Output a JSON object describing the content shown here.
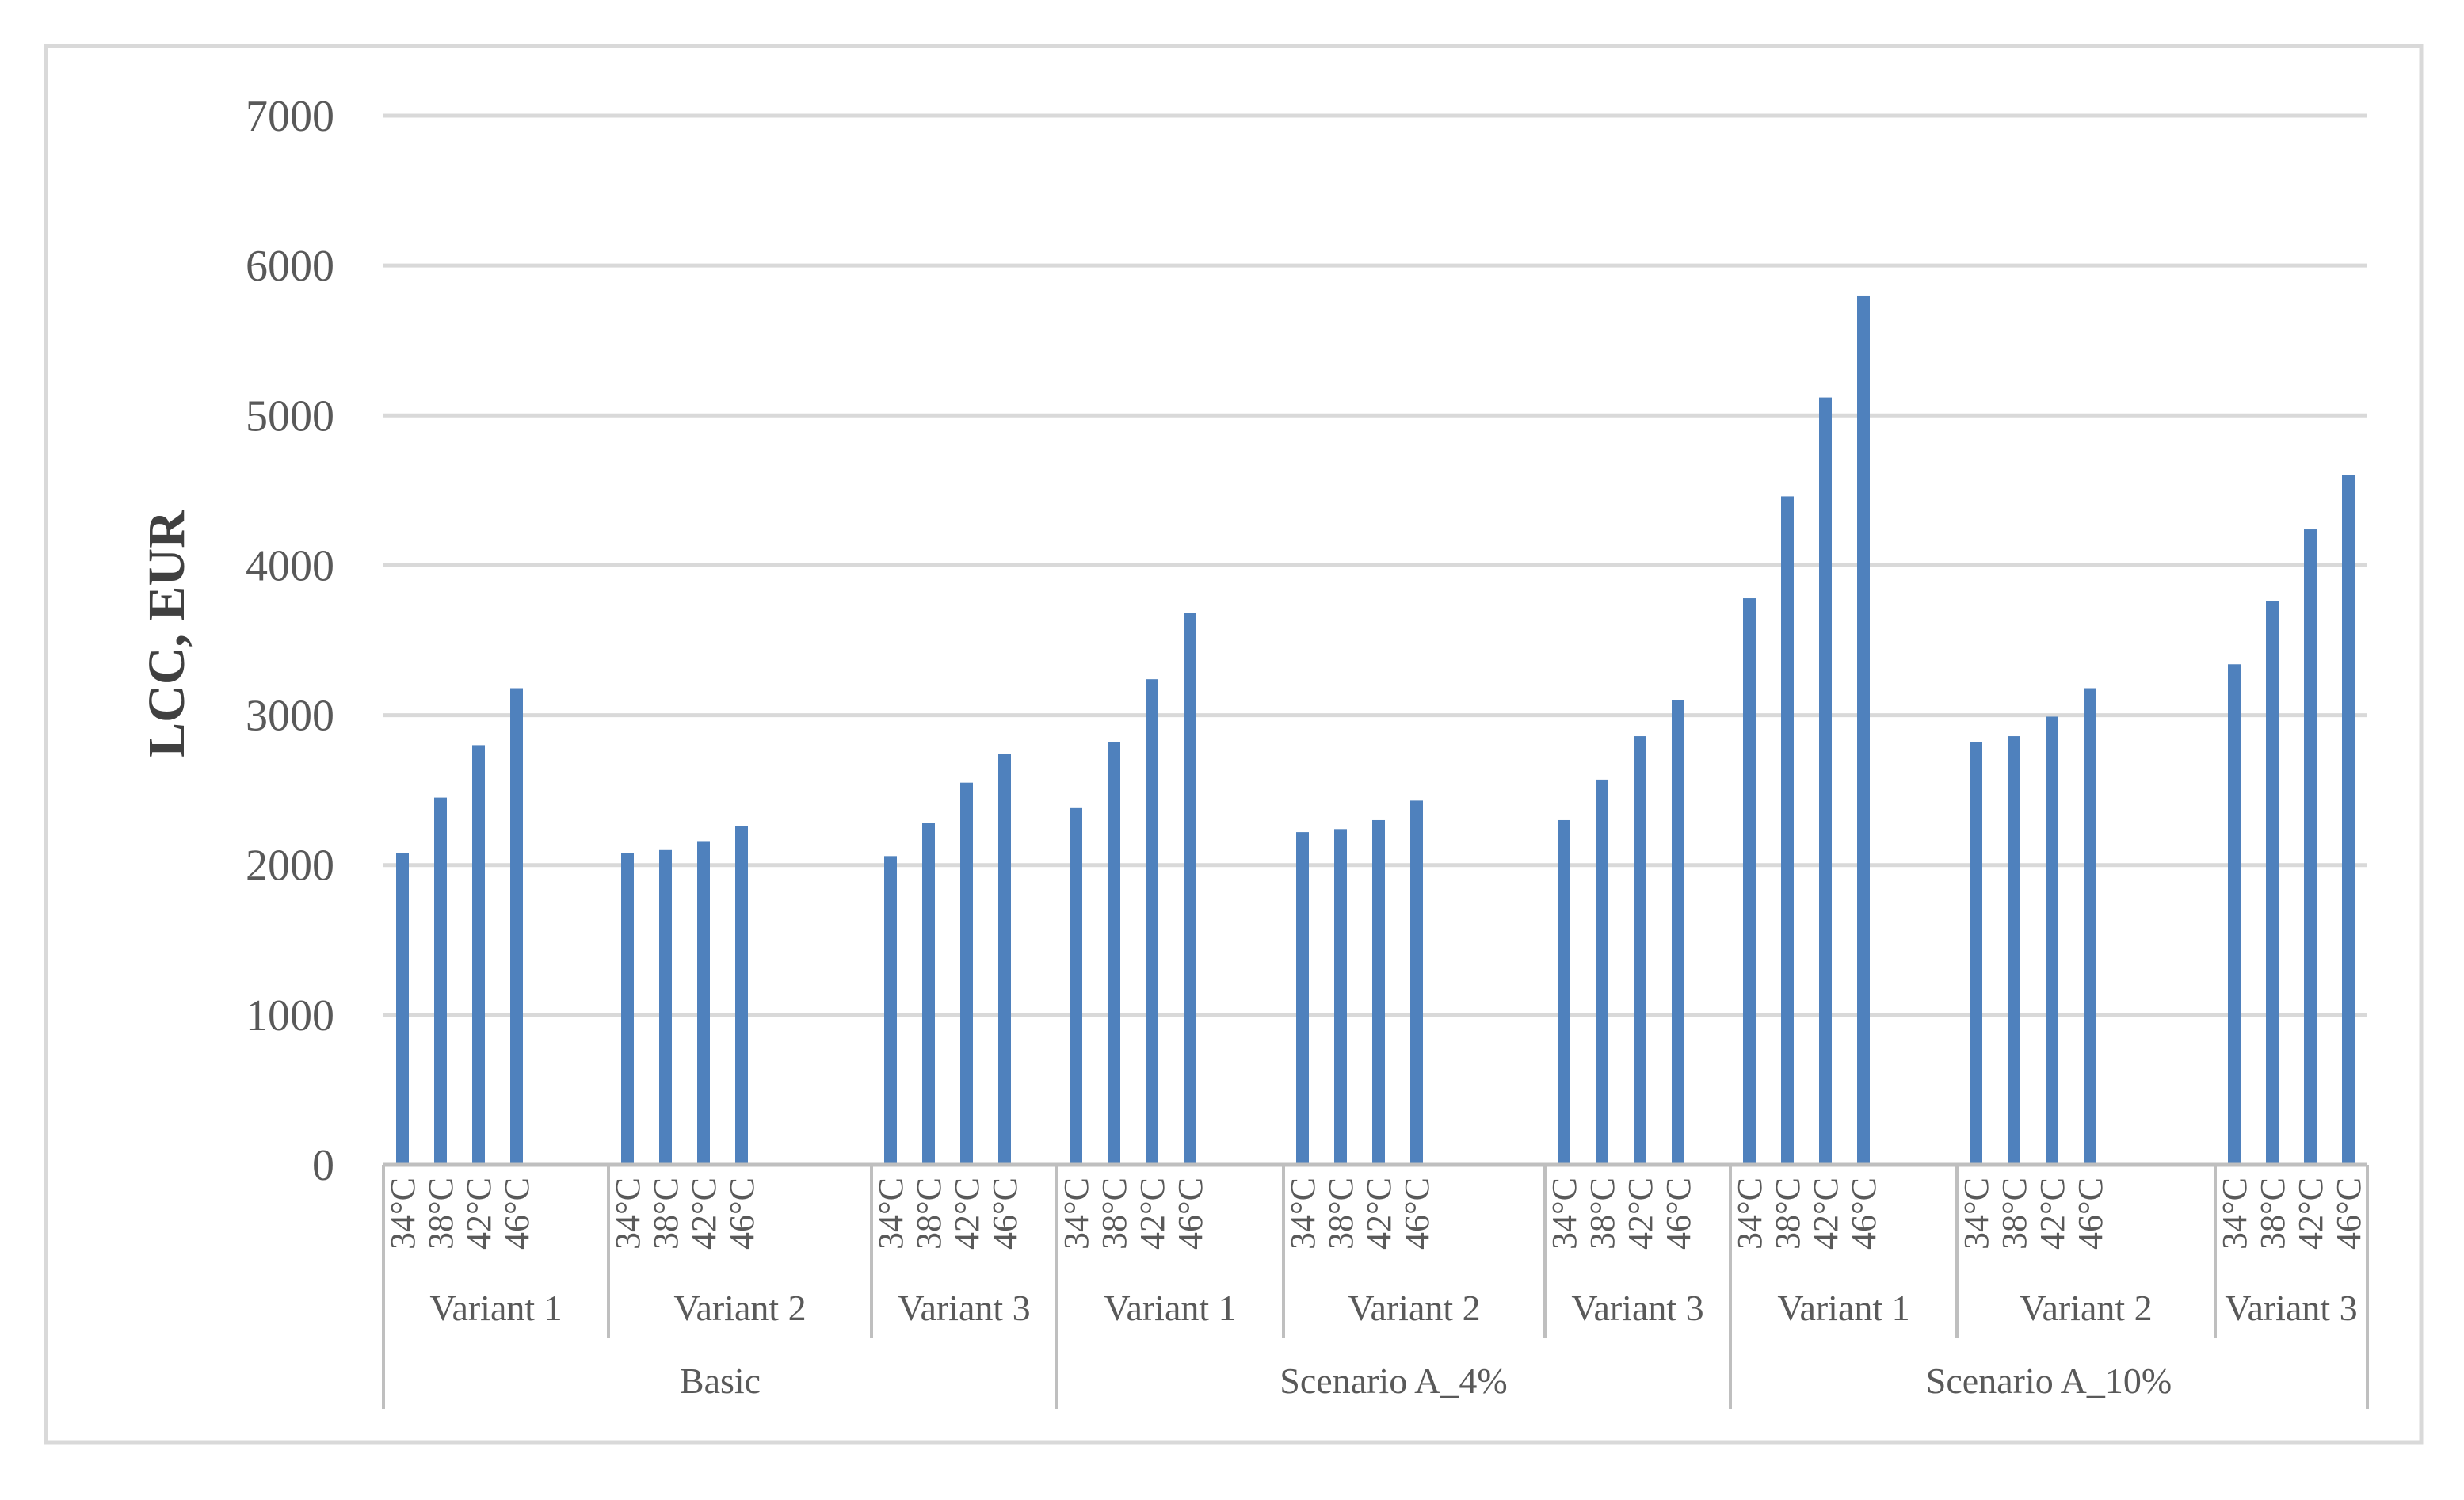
{
  "colors": {
    "bar": "#4F81BD",
    "grid": "#D9D9D9",
    "axis": "#BFBFBF",
    "frame": "#D9D9D9"
  },
  "chart_data": {
    "type": "bar",
    "ylabel": "LCC, EUR",
    "ylim": [
      0,
      7000
    ],
    "yticks": [
      0,
      1000,
      2000,
      3000,
      4000,
      5000,
      6000,
      7000
    ],
    "grid": true,
    "legend": "none",
    "temperatures": [
      "34°C",
      "38°C",
      "42°C",
      "46°C"
    ],
    "groups": [
      {
        "name": "Basic",
        "variants": [
          {
            "name": "Variant 1",
            "values": [
              2080,
              2450,
              2800,
              3180
            ]
          },
          {
            "name": "Variant 2",
            "values": [
              2080,
              2100,
              2160,
              2260
            ]
          },
          {
            "name": "Variant 3",
            "values": [
              2060,
              2280,
              2550,
              2740
            ]
          }
        ]
      },
      {
        "name": "Scenario A_4%",
        "variants": [
          {
            "name": "Variant 1",
            "values": [
              2380,
              2820,
              3240,
              3680
            ]
          },
          {
            "name": "Variant 2",
            "values": [
              2220,
              2240,
              2300,
              2430
            ]
          },
          {
            "name": "Variant 3",
            "values": [
              2300,
              2570,
              2860,
              3100
            ]
          }
        ]
      },
      {
        "name": "Scenario A_10%",
        "variants": [
          {
            "name": "Variant 1",
            "values": [
              3780,
              4460,
              5120,
              5800
            ]
          },
          {
            "name": "Variant 2",
            "values": [
              2820,
              2860,
              2990,
              3180
            ]
          },
          {
            "name": "Variant 3",
            "values": [
              3340,
              3760,
              4240,
              4600
            ]
          }
        ]
      }
    ]
  }
}
